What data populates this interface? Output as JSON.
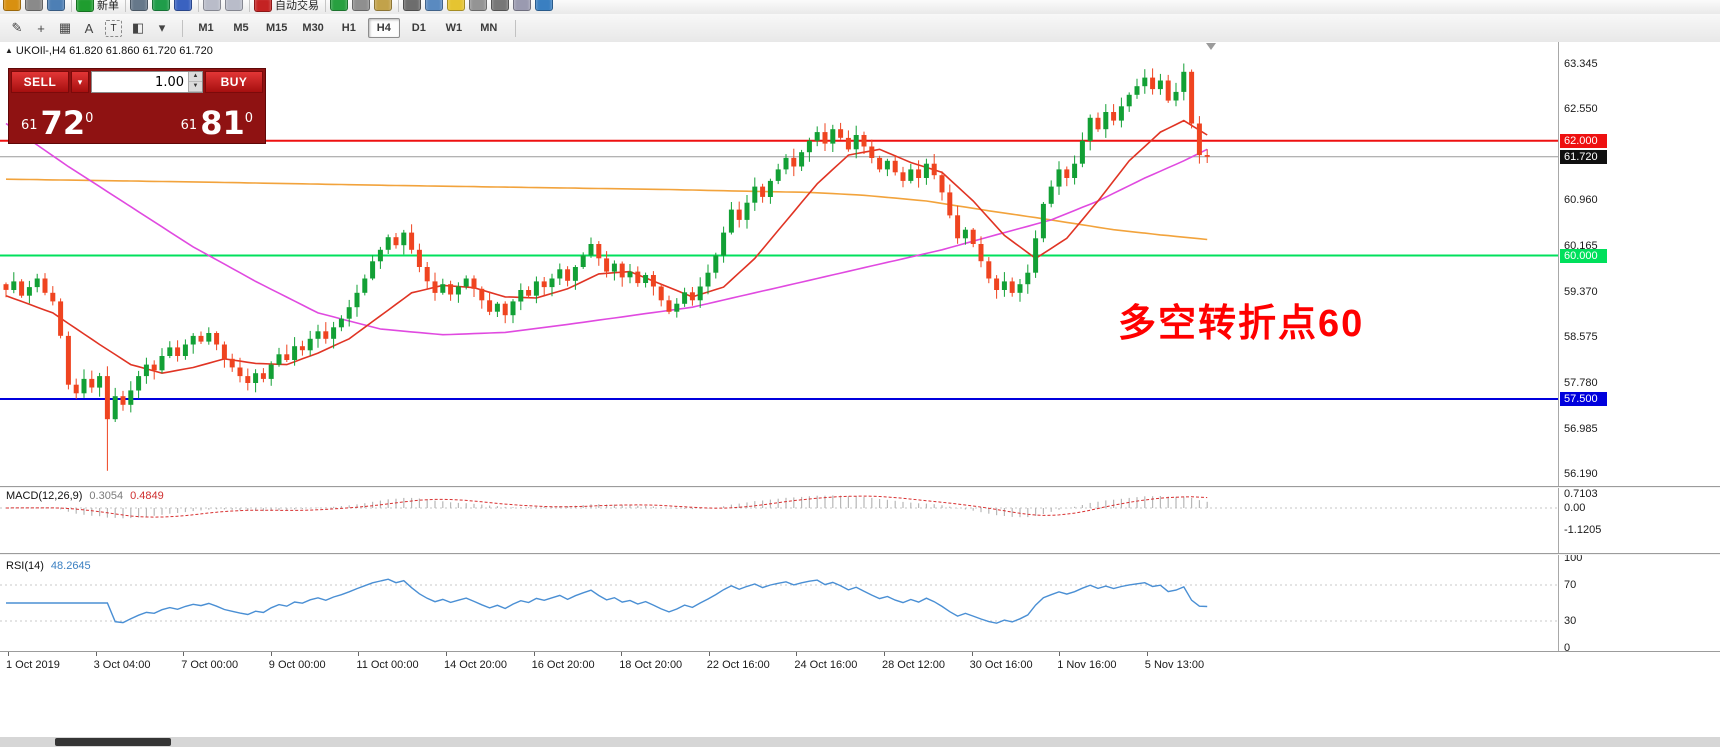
{
  "toolbar_top": {
    "items": [
      {
        "name": "new-chart-icon",
        "color": "#d89010"
      },
      {
        "name": "chart-profiles-icon",
        "color": "#8a8a8a"
      },
      {
        "name": "market-watch-icon",
        "color": "#4d7fb5"
      },
      {
        "type": "sep"
      },
      {
        "name": "new-order-icon",
        "color": "#1f9d2f",
        "label": "新单"
      },
      {
        "type": "sep"
      },
      {
        "name": "bar-chart-icon",
        "color": "#66788a"
      },
      {
        "name": "candlestick-chart-icon",
        "color": "#1f9d4a"
      },
      {
        "name": "line-chart-icon",
        "color": "#3a62c0"
      },
      {
        "type": "sep"
      },
      {
        "name": "zoom-in-icon",
        "color": "#b9bcc9"
      },
      {
        "name": "zoom-out-icon",
        "color": "#b9bcc9"
      },
      {
        "type": "sep"
      },
      {
        "name": "autotrading-icon",
        "color": "#c42222",
        "label": "自动交易"
      },
      {
        "type": "sep"
      },
      {
        "name": "indicators-icon",
        "color": "#28a040"
      },
      {
        "name": "timeframe-list-icon",
        "color": "#8f8f8f"
      },
      {
        "name": "templates-icon",
        "color": "#c2a24a"
      },
      {
        "type": "sep"
      },
      {
        "name": "terminal-window-icon",
        "color": "#6d6d6d"
      },
      {
        "name": "strategy-tester-icon",
        "color": "#5a8ac0"
      },
      {
        "name": "metaeditor-icon",
        "color": "#e5c431"
      },
      {
        "name": "options-icon",
        "color": "#949494"
      },
      {
        "name": "fullscreen-icon",
        "color": "#777777"
      },
      {
        "name": "tile-windows-icon",
        "color": "#9a9ab0"
      },
      {
        "name": "help-icon",
        "color": "#3a7fc1"
      }
    ]
  },
  "toolbar_tools": {
    "tools": [
      {
        "name": "cursor-pencil-icon",
        "glyph": "✎"
      },
      {
        "name": "crosshair-icon",
        "glyph": "+"
      },
      {
        "name": "grid-style-icon",
        "glyph": "▦"
      },
      {
        "name": "text-tool-icon",
        "glyph": "A"
      },
      {
        "name": "label-tool-icon",
        "glyph": "T",
        "boxed": true
      },
      {
        "name": "shapes-tool-icon",
        "glyph": "◧"
      },
      {
        "name": "shapes-dropdown-icon",
        "glyph": "▾"
      }
    ],
    "timeframes": [
      "M1",
      "M5",
      "M15",
      "M30",
      "H1",
      "H4",
      "D1",
      "W1",
      "MN"
    ],
    "active_timeframe": "H4"
  },
  "symbol_bar": {
    "marker": "▲",
    "text": "UKOIl-,H4  61.820 61.860 61.720 61.720"
  },
  "trade_panel": {
    "sell_label": "SELL",
    "buy_label": "BUY",
    "volume": "1.00",
    "bid": {
      "small": "61",
      "big": "72",
      "sup": "0"
    },
    "ask": {
      "small": "61",
      "big": "81",
      "sup": "0"
    },
    "panel_color": "#8f1212",
    "button_color": "#c41818"
  },
  "annotation": {
    "text": "多空转折点60",
    "color": "#ff0000"
  },
  "chart_data": {
    "type": "candlestick",
    "symbol": "UKOIl-",
    "timeframe": "H4",
    "ohlc_info": {
      "open": "61.820",
      "high": "61.860",
      "low": "61.720",
      "close": "61.720"
    },
    "ylim": [
      55.98,
      63.72
    ],
    "price_ticks": [
      "63.345",
      "62.550",
      "61.755",
      "60.960",
      "60.165",
      "59.370",
      "58.575",
      "57.780",
      "56.985",
      "56.190"
    ],
    "price_tick_values": [
      63.345,
      62.55,
      61.755,
      60.96,
      60.165,
      59.37,
      58.575,
      57.78,
      56.985,
      56.19
    ],
    "hlines": [
      {
        "value": 62.0,
        "label": "62.000",
        "color": "#ee1111"
      },
      {
        "value": 60.0,
        "label": "60.000",
        "color": "#00e05c"
      },
      {
        "value": 57.5,
        "label": "57.500",
        "color": "#0000dd"
      }
    ],
    "bid_price": {
      "value": 61.72,
      "label": "61.720",
      "line_color": "#9a9a9a",
      "label_bg": "#101010"
    },
    "candles": {
      "up_color": "#12a035",
      "down_color": "#ef4420",
      "first_open": 59.5,
      "closes": [
        59.4,
        59.55,
        59.3,
        59.45,
        59.6,
        59.35,
        59.2,
        58.6,
        57.75,
        57.6,
        57.85,
        57.7,
        57.9,
        57.15,
        57.55,
        57.4,
        57.65,
        57.9,
        58.1,
        58.0,
        58.25,
        58.4,
        58.25,
        58.45,
        58.6,
        58.5,
        58.65,
        58.45,
        58.2,
        58.05,
        57.9,
        57.78,
        57.95,
        57.85,
        58.1,
        58.28,
        58.18,
        58.42,
        58.35,
        58.55,
        58.68,
        58.55,
        58.75,
        58.9,
        59.1,
        59.35,
        59.6,
        59.9,
        60.1,
        60.32,
        60.18,
        60.4,
        60.1,
        59.8,
        59.55,
        59.35,
        59.5,
        59.32,
        59.46,
        59.6,
        59.42,
        59.22,
        59.02,
        59.16,
        58.96,
        59.2,
        59.4,
        59.3,
        59.55,
        59.45,
        59.6,
        59.76,
        59.56,
        59.8,
        60.0,
        60.2,
        59.95,
        59.72,
        59.86,
        59.62,
        59.72,
        59.52,
        59.66,
        59.46,
        59.22,
        59.02,
        59.16,
        59.36,
        59.22,
        59.46,
        59.7,
        60.0,
        60.4,
        60.8,
        60.62,
        60.92,
        61.2,
        61.02,
        61.3,
        61.5,
        61.7,
        61.55,
        61.8,
        62.0,
        62.15,
        61.95,
        62.2,
        62.05,
        61.85,
        62.1,
        61.9,
        61.7,
        61.5,
        61.65,
        61.45,
        61.3,
        61.5,
        61.35,
        61.6,
        61.4,
        61.1,
        60.7,
        60.3,
        60.45,
        60.2,
        59.9,
        59.6,
        59.4,
        59.55,
        59.35,
        59.5,
        59.7,
        60.3,
        60.9,
        61.2,
        61.5,
        61.35,
        61.6,
        62.0,
        62.4,
        62.2,
        62.5,
        62.35,
        62.6,
        62.8,
        62.95,
        63.1,
        62.9,
        63.05,
        62.7,
        62.85,
        63.2,
        62.3,
        61.75,
        61.72
      ],
      "overrides": {
        "13": {
          "low": 56.25
        },
        "151": {
          "high": 63.345
        }
      }
    },
    "ma_lines": [
      {
        "name": "ma-slow-orange",
        "color": "#f2a33c",
        "points": [
          [
            0,
            61.33
          ],
          [
            25,
            61.28
          ],
          [
            50,
            61.22
          ],
          [
            70,
            61.18
          ],
          [
            85,
            61.15
          ],
          [
            95,
            61.12
          ],
          [
            103,
            61.1
          ],
          [
            110,
            61.05
          ],
          [
            118,
            60.95
          ],
          [
            126,
            60.78
          ],
          [
            134,
            60.62
          ],
          [
            142,
            60.45
          ],
          [
            148,
            60.36
          ],
          [
            154,
            60.28
          ]
        ]
      },
      {
        "name": "ma-mid-magenta",
        "color": "#e04ae0",
        "points": [
          [
            0,
            62.3
          ],
          [
            8,
            61.55
          ],
          [
            16,
            60.85
          ],
          [
            24,
            60.15
          ],
          [
            32,
            59.55
          ],
          [
            40,
            59.0
          ],
          [
            48,
            58.72
          ],
          [
            56,
            58.62
          ],
          [
            64,
            58.66
          ],
          [
            72,
            58.8
          ],
          [
            80,
            58.95
          ],
          [
            88,
            59.1
          ],
          [
            96,
            59.35
          ],
          [
            104,
            59.6
          ],
          [
            112,
            59.85
          ],
          [
            120,
            60.1
          ],
          [
            128,
            60.4
          ],
          [
            134,
            60.62
          ],
          [
            140,
            60.95
          ],
          [
            146,
            61.35
          ],
          [
            151,
            61.65
          ],
          [
            154,
            61.85
          ]
        ]
      },
      {
        "name": "ma-fast-red",
        "color": "#e03424",
        "points": [
          [
            0,
            59.3
          ],
          [
            6,
            59.0
          ],
          [
            12,
            58.45
          ],
          [
            16,
            58.1
          ],
          [
            20,
            57.95
          ],
          [
            24,
            58.05
          ],
          [
            28,
            58.2
          ],
          [
            32,
            58.12
          ],
          [
            36,
            58.1
          ],
          [
            40,
            58.3
          ],
          [
            44,
            58.55
          ],
          [
            48,
            58.95
          ],
          [
            52,
            59.35
          ],
          [
            56,
            59.48
          ],
          [
            60,
            59.44
          ],
          [
            64,
            59.28
          ],
          [
            68,
            59.26
          ],
          [
            72,
            59.42
          ],
          [
            76,
            59.68
          ],
          [
            80,
            59.72
          ],
          [
            84,
            59.5
          ],
          [
            88,
            59.28
          ],
          [
            92,
            59.45
          ],
          [
            96,
            59.95
          ],
          [
            100,
            60.6
          ],
          [
            104,
            61.25
          ],
          [
            108,
            61.75
          ],
          [
            112,
            61.85
          ],
          [
            116,
            61.62
          ],
          [
            120,
            61.45
          ],
          [
            124,
            60.95
          ],
          [
            128,
            60.35
          ],
          [
            132,
            59.95
          ],
          [
            136,
            60.3
          ],
          [
            140,
            60.95
          ],
          [
            144,
            61.65
          ],
          [
            148,
            62.15
          ],
          [
            151,
            62.35
          ],
          [
            154,
            62.1
          ]
        ]
      }
    ],
    "macd": {
      "label": "MACD(12,26,9)",
      "value_main": "0.3054",
      "value_signal": "0.4849",
      "scale": [
        "0.7103",
        "0.00",
        "-1.1205"
      ],
      "scale_values": [
        0.7103,
        0,
        -1.1205
      ],
      "hist_color": "#b8b8b8",
      "signal_color": "#d83030"
    },
    "rsi": {
      "label": "RSI(14)",
      "value": "48.2645",
      "scale": [
        "100",
        "70",
        "30",
        "0"
      ],
      "scale_values": [
        100,
        70,
        30,
        0
      ],
      "levels": [
        70,
        30
      ],
      "line_color": "#4a8fd4"
    },
    "time_labels": [
      "1 Oct 2019",
      "3 Oct 04:00",
      "7 Oct 00:00",
      "9 Oct 00:00",
      "11 Oct 00:00",
      "14 Oct 20:00",
      "16 Oct 20:00",
      "18 Oct 20:00",
      "22 Oct 16:00",
      "24 Oct 16:00",
      "28 Oct 12:00",
      "30 Oct 16:00",
      "1 Nov 16:00",
      "5 Nov 13:00"
    ]
  }
}
